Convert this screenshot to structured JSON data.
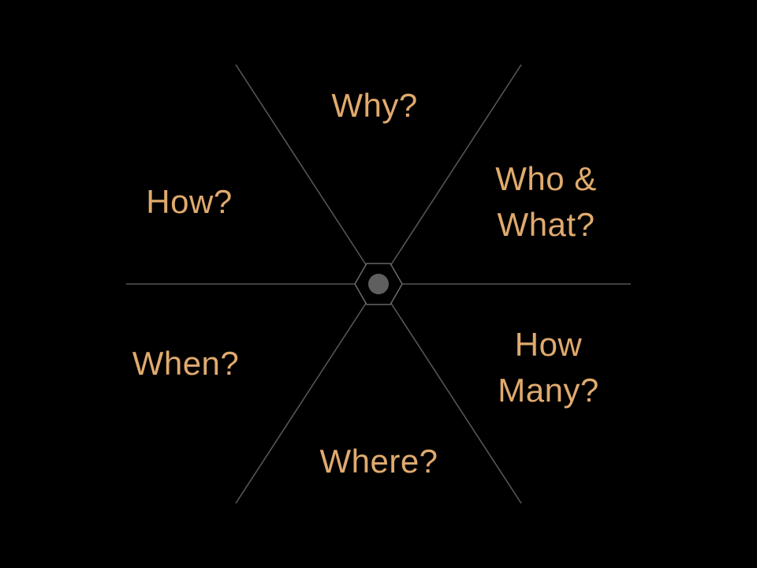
{
  "colors": {
    "background": "#000000",
    "label": "#e0aa6e",
    "spoke": "#555555",
    "hub_outline": "#666666",
    "hub_dot": "#5f5f5f"
  },
  "labels": {
    "why": "Why?",
    "who_line1": "Who &",
    "who_line2": "What?",
    "how": "How?",
    "when": "When?",
    "how_many_line1": "How",
    "how_many_line2": "Many?",
    "where": "Where?"
  }
}
